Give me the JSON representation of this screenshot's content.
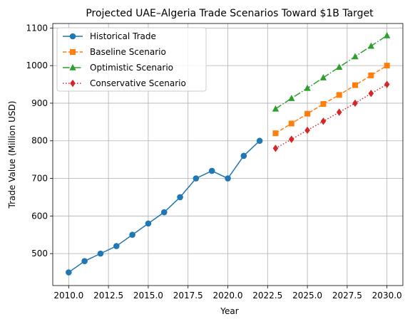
{
  "chart_data": {
    "type": "line",
    "title": "Projected UAE–Algeria Trade Scenarios Toward $1B Target",
    "xlabel": "Year",
    "ylabel": "Trade Value (Million USD)",
    "xlim": [
      2009.0,
      2031.0
    ],
    "ylim": [
      415,
      1112
    ],
    "xticks": [
      2010.0,
      2012.5,
      2015.0,
      2017.5,
      2020.0,
      2022.5,
      2025.0,
      2027.5,
      2030.0
    ],
    "xtick_labels": [
      "2010.0",
      "2012.5",
      "2015.0",
      "2017.5",
      "2020.0",
      "2022.5",
      "2025.0",
      "2027.5",
      "2030.0"
    ],
    "yticks": [
      500,
      600,
      700,
      800,
      900,
      1000,
      1100
    ],
    "ytick_labels": [
      "500",
      "600",
      "700",
      "800",
      "900",
      "1000",
      "1100"
    ],
    "grid": true,
    "legend_position": "top-left",
    "series": [
      {
        "name": "Historical Trade",
        "color": "#1f77b4",
        "marker": "circle",
        "linestyle": "solid",
        "x": [
          2010,
          2011,
          2012,
          2013,
          2014,
          2015,
          2016,
          2017,
          2018,
          2019,
          2020,
          2021,
          2022
        ],
        "values": [
          450,
          480,
          500,
          520,
          550,
          580,
          610,
          650,
          700,
          720,
          700,
          760,
          800
        ]
      },
      {
        "name": "Baseline Scenario",
        "color": "#ff7f0e",
        "marker": "square",
        "linestyle": "dashed",
        "x": [
          2023,
          2024,
          2025,
          2026,
          2027,
          2028,
          2029,
          2030
        ],
        "values": [
          820,
          846,
          872,
          898,
          922,
          948,
          974,
          1000
        ]
      },
      {
        "name": "Optimistic Scenario",
        "color": "#2ca02c",
        "marker": "triangle",
        "linestyle": "dashdot",
        "x": [
          2023,
          2024,
          2025,
          2026,
          2027,
          2028,
          2029,
          2030
        ],
        "values": [
          885,
          913,
          940,
          968,
          996,
          1024,
          1052,
          1080
        ]
      },
      {
        "name": "Conservative Scenario",
        "color": "#d62728",
        "marker": "diamond",
        "linestyle": "dotted",
        "x": [
          2023,
          2024,
          2025,
          2026,
          2027,
          2028,
          2029,
          2030
        ],
        "values": [
          780,
          804,
          828,
          852,
          876,
          900,
          926,
          950
        ]
      }
    ]
  }
}
